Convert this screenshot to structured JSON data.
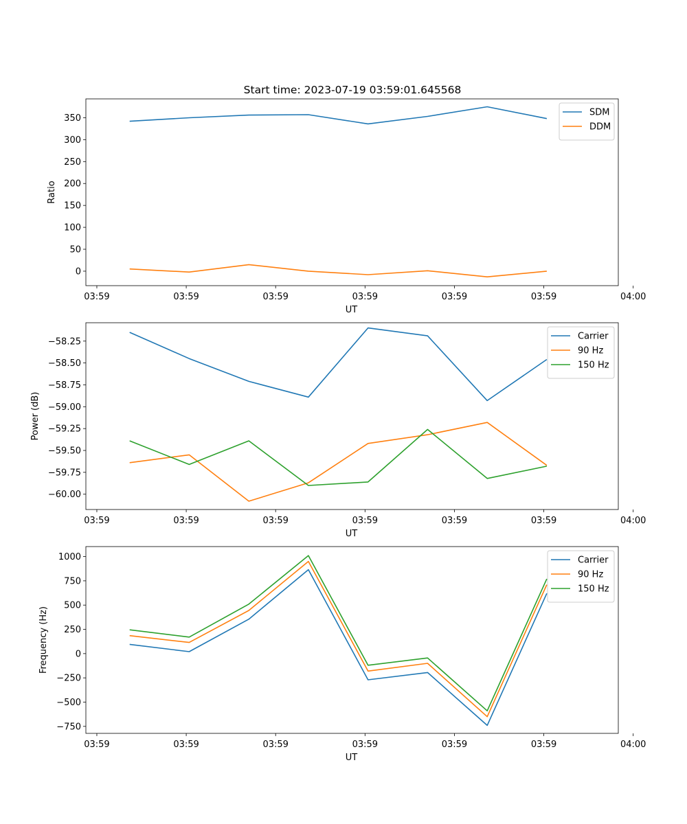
{
  "figure_title": "Start time: 2023-07-19 03:59:01.645568",
  "chart_data": [
    {
      "type": "line",
      "title": "Start time: 2023-07-19 03:59:01.645568",
      "xlabel": "UT",
      "ylabel": "Ratio",
      "x": [
        1,
        2,
        3,
        4,
        5,
        6,
        7,
        8
      ],
      "xlim": [
        0.266,
        9.2
      ],
      "xticks": [
        0.45,
        1.95,
        3.45,
        4.95,
        6.45,
        7.95,
        9.45
      ],
      "xtick_labels": [
        "03:59",
        "03:59",
        "03:59",
        "03:59",
        "03:59",
        "03:59",
        "04:00"
      ],
      "ylim": [
        -33,
        393
      ],
      "yticks": [
        0,
        50,
        100,
        150,
        200,
        250,
        300,
        350
      ],
      "ytick_labels": [
        "0",
        "50",
        "100",
        "150",
        "200",
        "250",
        "300",
        "350"
      ],
      "legend_position": "top-right",
      "series": [
        {
          "name": "SDM",
          "color": "#1f77b4",
          "values": [
            342,
            350,
            356,
            357,
            336,
            353,
            375,
            348
          ]
        },
        {
          "name": "DDM",
          "color": "#ff7f0e",
          "values": [
            5,
            -2,
            15,
            0,
            -8,
            1,
            -13,
            0
          ]
        }
      ]
    },
    {
      "type": "line",
      "title": "",
      "xlabel": "UT",
      "ylabel": "Power (dB)",
      "x": [
        1,
        2,
        3,
        4,
        5,
        6,
        7,
        8
      ],
      "xlim": [
        0.266,
        9.2
      ],
      "xticks": [
        0.45,
        1.95,
        3.45,
        4.95,
        6.45,
        7.95,
        9.45
      ],
      "xtick_labels": [
        "03:59",
        "03:59",
        "03:59",
        "03:59",
        "03:59",
        "03:59",
        "04:00"
      ],
      "ylim": [
        -60.175,
        -58.04
      ],
      "yticks": [
        -60.0,
        -59.75,
        -59.5,
        -59.25,
        -59.0,
        -58.75,
        -58.5,
        -58.25
      ],
      "ytick_labels": [
        "−60.00",
        "−59.75",
        "−59.50",
        "−59.25",
        "−59.00",
        "−58.75",
        "−58.50",
        "−58.25"
      ],
      "legend_position": "top-right",
      "series": [
        {
          "name": "Carrier",
          "color": "#1f77b4",
          "values": [
            -58.15,
            -58.45,
            -58.71,
            -58.89,
            -58.1,
            -58.19,
            -58.93,
            -58.46
          ]
        },
        {
          "name": "90 Hz",
          "color": "#ff7f0e",
          "values": [
            -59.64,
            -59.55,
            -60.08,
            -59.87,
            -59.42,
            -59.32,
            -59.18,
            -59.67
          ]
        },
        {
          "name": "150 Hz",
          "color": "#2ca02c",
          "values": [
            -59.39,
            -59.66,
            -59.39,
            -59.9,
            -59.86,
            -59.26,
            -59.82,
            -59.68
          ]
        }
      ]
    },
    {
      "type": "line",
      "title": "",
      "xlabel": "UT",
      "ylabel": "Frequency (Hz)",
      "x": [
        1,
        2,
        3,
        4,
        5,
        6,
        7,
        8
      ],
      "xlim": [
        0.266,
        9.2
      ],
      "xticks": [
        0.45,
        1.95,
        3.45,
        4.95,
        6.45,
        7.95,
        9.45
      ],
      "xtick_labels": [
        "03:59",
        "03:59",
        "03:59",
        "03:59",
        "03:59",
        "03:59",
        "04:00"
      ],
      "ylim": [
        -822,
        1103
      ],
      "yticks": [
        -750,
        -500,
        -250,
        0,
        250,
        500,
        750,
        1000
      ],
      "ytick_labels": [
        "−750",
        "−500",
        "−250",
        "0",
        "250",
        "500",
        "750",
        "1000"
      ],
      "legend_position": "top-right",
      "series": [
        {
          "name": "Carrier",
          "color": "#1f77b4",
          "values": [
            95,
            20,
            355,
            865,
            -270,
            -195,
            -740,
            620
          ]
        },
        {
          "name": "90 Hz",
          "color": "#ff7f0e",
          "values": [
            185,
            115,
            445,
            950,
            -180,
            -100,
            -650,
            710
          ]
        },
        {
          "name": "150 Hz",
          "color": "#2ca02c",
          "values": [
            245,
            170,
            510,
            1010,
            -120,
            -45,
            -590,
            770
          ]
        }
      ]
    }
  ]
}
